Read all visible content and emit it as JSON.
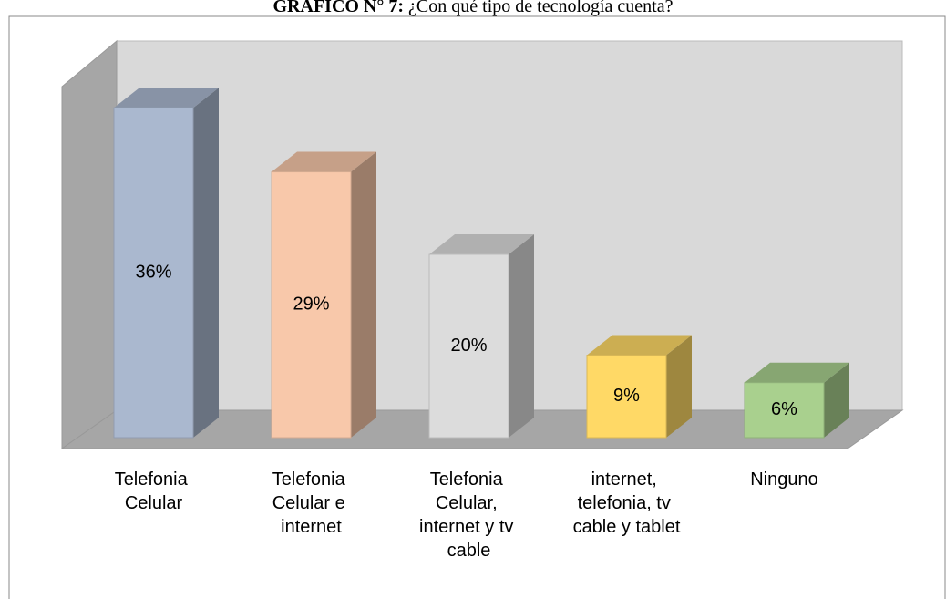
{
  "chart_data": {
    "type": "bar3d",
    "title_prefix": "GRÁFICO N° 7:",
    "title": "¿Con qué tipo de tecnología cuenta?",
    "categories": [
      "Telefonia Celular",
      "Telefonia Celular e internet",
      "Telefonia Celular, internet y tv cable",
      "internet, telefonia, tv cable y tablet",
      "Ninguno"
    ],
    "values": [
      36,
      29,
      20,
      9,
      6
    ],
    "value_labels": [
      "36%",
      "29%",
      "20%",
      "9%",
      "6%"
    ],
    "colors": [
      "#aab8cf",
      "#f8c8aa",
      "#dcdcdc",
      "#ffd966",
      "#a9d08e"
    ],
    "ylim": [
      0,
      40
    ]
  }
}
